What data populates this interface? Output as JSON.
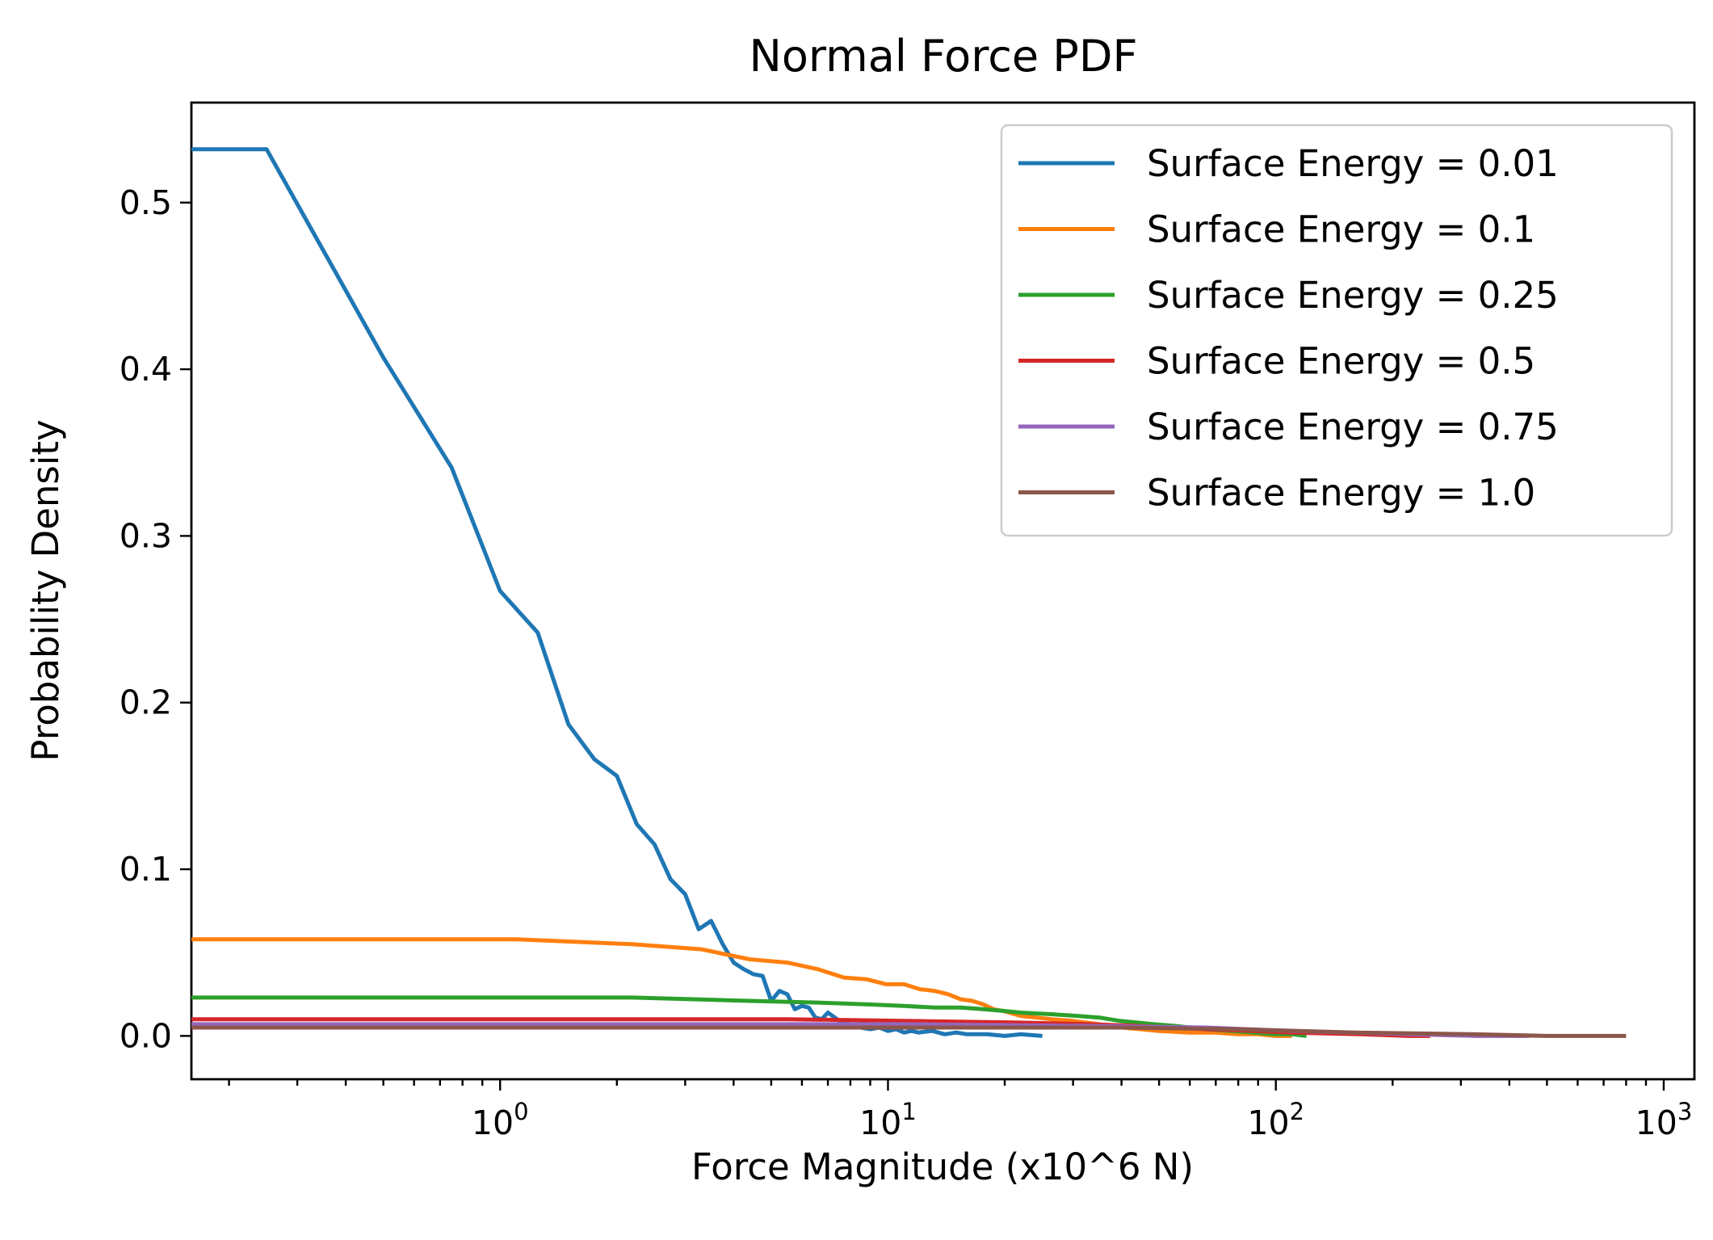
{
  "chart_data": {
    "type": "line",
    "title": "Normal Force PDF",
    "xlabel": "Force Magnitude (x10^6 N)",
    "ylabel": "Probability Density",
    "xscale": "log",
    "xlim": [
      0.16,
      1200
    ],
    "ylim": [
      -0.026,
      0.56
    ],
    "x_ticks": [
      {
        "value": 1,
        "base": "10",
        "exp": "0"
      },
      {
        "value": 10,
        "base": "10",
        "exp": "1"
      },
      {
        "value": 100,
        "base": "10",
        "exp": "2"
      },
      {
        "value": 1000,
        "base": "10",
        "exp": "3"
      }
    ],
    "y_ticks": [
      {
        "value": 0.0,
        "label": "0.0"
      },
      {
        "value": 0.1,
        "label": "0.1"
      },
      {
        "value": 0.2,
        "label": "0.2"
      },
      {
        "value": 0.3,
        "label": "0.3"
      },
      {
        "value": 0.4,
        "label": "0.4"
      },
      {
        "value": 0.5,
        "label": "0.5"
      }
    ],
    "grid": false,
    "legend_position": "top-right",
    "series": [
      {
        "name": "Surface Energy = 0.01",
        "color": "#1f77b4",
        "x": [
          0.16,
          0.25,
          0.5,
          0.75,
          1.0,
          1.25,
          1.5,
          1.75,
          2.0,
          2.25,
          2.5,
          2.75,
          3.0,
          3.25,
          3.5,
          3.75,
          4.0,
          4.25,
          4.5,
          4.75,
          5.0,
          5.25,
          5.5,
          5.75,
          6.0,
          6.25,
          6.5,
          6.75,
          7.0,
          7.5,
          8.0,
          8.5,
          9.0,
          9.5,
          10,
          10.5,
          11,
          11.5,
          12,
          13,
          14,
          15,
          16,
          18,
          20,
          22,
          25
        ],
        "y": [
          0.532,
          0.532,
          0.407,
          0.341,
          0.267,
          0.242,
          0.187,
          0.166,
          0.156,
          0.127,
          0.115,
          0.094,
          0.085,
          0.064,
          0.069,
          0.055,
          0.044,
          0.04,
          0.037,
          0.036,
          0.021,
          0.027,
          0.025,
          0.016,
          0.018,
          0.017,
          0.011,
          0.01,
          0.014,
          0.009,
          0.007,
          0.005,
          0.004,
          0.005,
          0.003,
          0.004,
          0.002,
          0.003,
          0.002,
          0.003,
          0.001,
          0.002,
          0.001,
          0.001,
          0.0,
          0.001,
          0.0
        ]
      },
      {
        "name": "Surface Energy = 0.1",
        "color": "#ff7f0e",
        "x": [
          0.16,
          1.1,
          2.2,
          3.3,
          4.4,
          5.5,
          6.6,
          7.7,
          8.8,
          9.9,
          11,
          12.1,
          13.2,
          14.3,
          15.4,
          16.5,
          17.6,
          18.7,
          19.8,
          22,
          24.2,
          26.4,
          30,
          35,
          40,
          45,
          50,
          60,
          70,
          80,
          90,
          100,
          110
        ],
        "y": [
          0.058,
          0.058,
          0.055,
          0.052,
          0.046,
          0.044,
          0.04,
          0.035,
          0.034,
          0.031,
          0.031,
          0.028,
          0.027,
          0.025,
          0.022,
          0.021,
          0.019,
          0.016,
          0.015,
          0.012,
          0.011,
          0.01,
          0.009,
          0.007,
          0.005,
          0.004,
          0.003,
          0.002,
          0.002,
          0.001,
          0.001,
          0.0,
          0.0
        ]
      },
      {
        "name": "Surface Energy = 0.25",
        "color": "#2ca02c",
        "x": [
          0.16,
          2.2,
          4.4,
          6.6,
          8.8,
          11,
          13.2,
          15.4,
          17.6,
          19.8,
          22,
          26.4,
          30.8,
          35.2,
          39.6,
          44,
          48.4,
          55,
          66,
          77,
          88,
          99,
          110,
          120
        ],
        "y": [
          0.023,
          0.023,
          0.021,
          0.02,
          0.019,
          0.018,
          0.017,
          0.017,
          0.016,
          0.015,
          0.014,
          0.013,
          0.012,
          0.011,
          0.009,
          0.008,
          0.007,
          0.006,
          0.004,
          0.003,
          0.002,
          0.001,
          0.001,
          0.0
        ]
      },
      {
        "name": "Surface Energy = 0.5",
        "color": "#d62728",
        "x": [
          0.16,
          5.5,
          11,
          22,
          33,
          44,
          66,
          88,
          110,
          165,
          220,
          250
        ],
        "y": [
          0.01,
          0.01,
          0.009,
          0.008,
          0.007,
          0.006,
          0.004,
          0.003,
          0.002,
          0.001,
          0.0,
          0.0
        ]
      },
      {
        "name": "Surface Energy = 0.75",
        "color": "#9467bd",
        "x": [
          0.16,
          11,
          33,
          66,
          110,
          220,
          330,
          450
        ],
        "y": [
          0.007,
          0.007,
          0.006,
          0.005,
          0.003,
          0.001,
          0.0,
          0.0
        ]
      },
      {
        "name": "Surface Energy = 1.0",
        "color": "#8c564b",
        "x": [
          0.16,
          16,
          40,
          80,
          160,
          320,
          500,
          800
        ],
        "y": [
          0.005,
          0.005,
          0.005,
          0.004,
          0.002,
          0.001,
          0.0,
          0.0
        ]
      }
    ]
  }
}
